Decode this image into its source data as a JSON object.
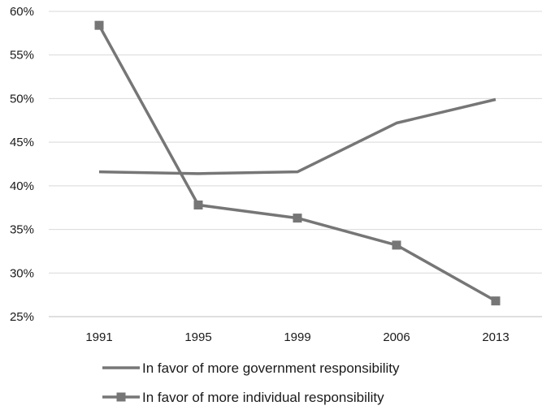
{
  "chart_data": {
    "type": "line",
    "categories": [
      "1991",
      "1995",
      "1999",
      "2006",
      "2013"
    ],
    "ylim": [
      0.25,
      0.6
    ],
    "yticks": [
      "25%",
      "30%",
      "35%",
      "40%",
      "45%",
      "50%",
      "55%",
      "60%"
    ],
    "ytick_values": [
      0.25,
      0.3,
      0.35,
      0.4,
      0.45,
      0.5,
      0.55,
      0.6
    ],
    "grid": true,
    "legend_position": "bottom",
    "series": [
      {
        "name": "In favor of more government responsibility",
        "values": [
          0.416,
          0.414,
          0.416,
          0.472,
          0.499
        ],
        "color": "#767676",
        "marker": "none"
      },
      {
        "name": "In favor of more individual responsibility",
        "values": [
          0.584,
          0.378,
          0.363,
          0.332,
          0.268
        ],
        "color": "#767676",
        "marker": "square"
      }
    ]
  }
}
